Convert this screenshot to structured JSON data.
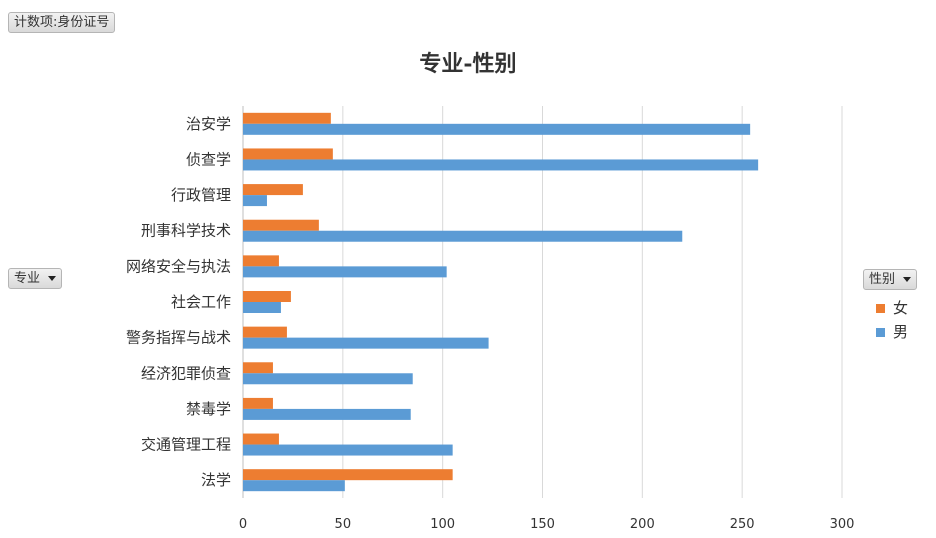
{
  "value_field": {
    "label": "计数项:身份证号"
  },
  "category_field": {
    "label": "专业"
  },
  "series_field": {
    "label": "性别"
  },
  "chart_data": {
    "type": "bar",
    "orientation": "horizontal",
    "title": "专业-性别",
    "categories": [
      "治安学",
      "侦查学",
      "行政管理",
      "刑事科学技术",
      "网络安全与执法",
      "社会工作",
      "警务指挥与战术",
      "经济犯罪侦查",
      "禁毒学",
      "交通管理工程",
      "法学"
    ],
    "series": [
      {
        "name": "女",
        "color": "#ed7d31",
        "values": [
          44,
          45,
          30,
          38,
          18,
          24,
          22,
          15,
          15,
          18,
          105
        ]
      },
      {
        "name": "男",
        "color": "#5b9bd5",
        "values": [
          254,
          258,
          12,
          220,
          102,
          19,
          123,
          85,
          84,
          105,
          51
        ]
      }
    ],
    "xlim": [
      0,
      300
    ],
    "xticks": [
      0,
      50,
      100,
      150,
      200,
      250,
      300
    ],
    "grid": true,
    "legend_position": "right"
  }
}
